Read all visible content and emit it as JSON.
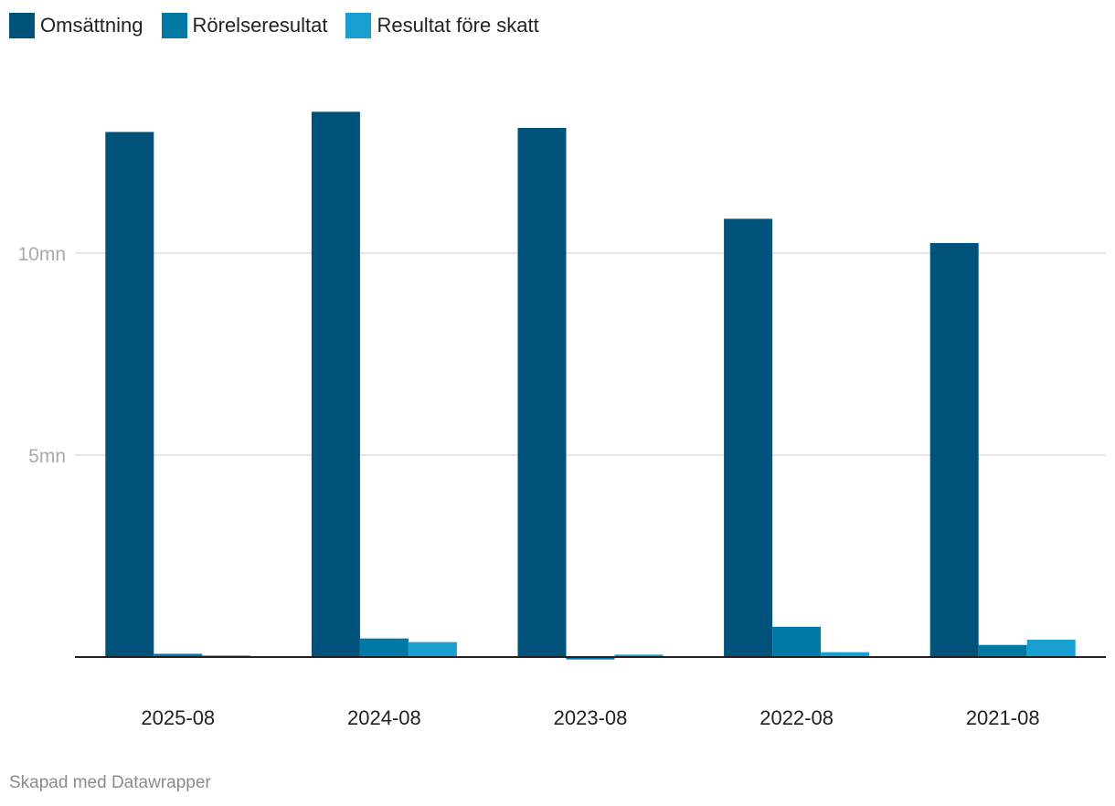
{
  "legend": {
    "items": [
      {
        "label": "Omsättning",
        "color": "#00527a"
      },
      {
        "label": "Rörelseresultat",
        "color": "#0079a6"
      },
      {
        "label": "Resultat före skatt",
        "color": "#19a0d0"
      }
    ]
  },
  "chart_data": {
    "type": "bar",
    "categories": [
      "2025-08",
      "2024-08",
      "2023-08",
      "2022-08",
      "2021-08"
    ],
    "series": [
      {
        "name": "Omsättning",
        "color": "#00527a",
        "values": [
          13000000,
          13500000,
          13100000,
          10850000,
          10250000
        ]
      },
      {
        "name": "Rörelseresultat",
        "color": "#0079a6",
        "values": [
          80000,
          460000,
          -60000,
          750000,
          300000
        ]
      },
      {
        "name": "Resultat före skatt",
        "color": "#19a0d0",
        "values": [
          40000,
          370000,
          60000,
          120000,
          430000
        ]
      }
    ],
    "ylim": [
      -200000,
      15000000
    ],
    "yticks": [
      {
        "value": 5000000,
        "label": "5mn"
      },
      {
        "value": 10000000,
        "label": "10mn"
      }
    ],
    "grid": true,
    "legend_position": "top-left"
  },
  "footer": {
    "credit": "Skapad med Datawrapper"
  }
}
